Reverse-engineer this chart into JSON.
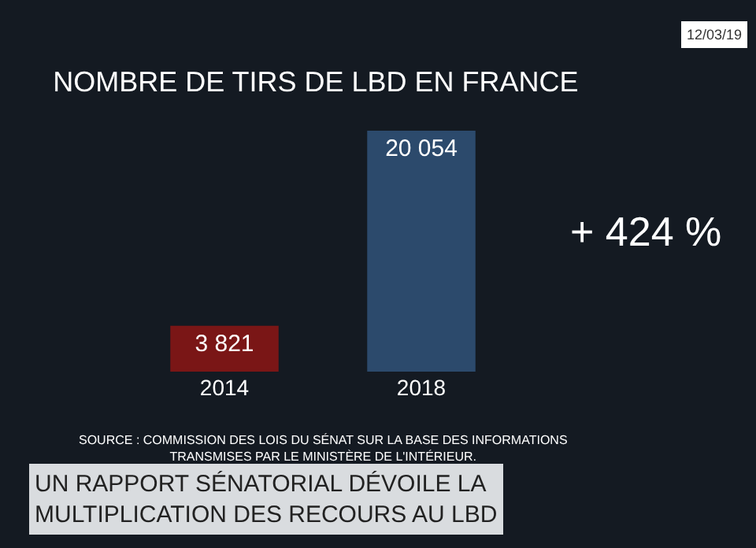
{
  "chart_data": {
    "type": "bar",
    "title": "NOMBRE DE TIRS DE LBD EN FRANCE",
    "categories": [
      "2014",
      "2018"
    ],
    "values": [
      3821,
      20054
    ],
    "value_labels": [
      "3 821",
      "20 054"
    ],
    "colors": [
      "#7a1616",
      "#2c4a6c"
    ],
    "annotations": [
      "+ 424 %",
      "SOURCE : COMMISSION DES LOIS DU SÉNAT SUR LA BASE DES INFORMATIONS\nTRANSMISES PAR LE MINISTÈRE DE L'INTÉRIEUR.",
      "UN RAPPORT SÉNATORIAL DÉVOILE LA\nMULTIPLICATION DES RECOURS AU LBD",
      "12/03/19"
    ],
    "legend": false
  }
}
